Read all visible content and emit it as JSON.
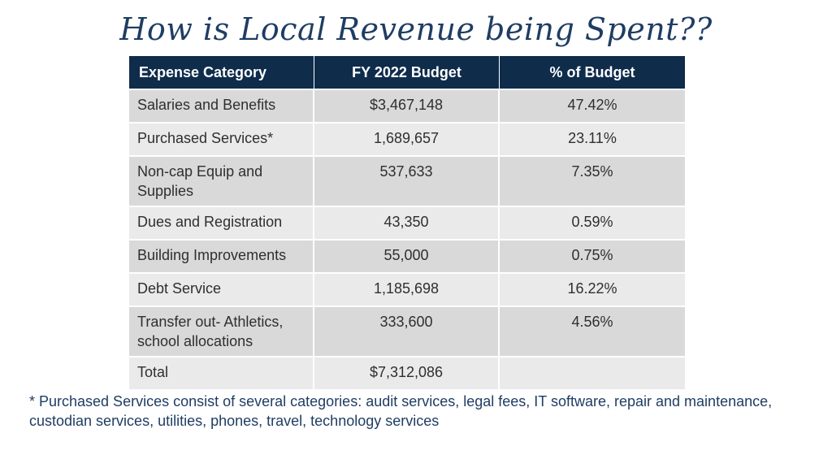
{
  "title": "How is Local Revenue being Spent??",
  "table": {
    "headers": [
      "Expense Category",
      "FY 2022 Budget",
      "% of Budget"
    ],
    "rows": [
      {
        "category": "Salaries and Benefits",
        "budget": "$3,467,148",
        "percent": "47.42%"
      },
      {
        "category": "Purchased Services*",
        "budget": "1,689,657",
        "percent": "23.11%"
      },
      {
        "category": "Non-cap Equip and Supplies",
        "budget": "537,633",
        "percent": "7.35%"
      },
      {
        "category": "Dues and Registration",
        "budget": "43,350",
        "percent": "0.59%"
      },
      {
        "category": "Building Improvements",
        "budget": "55,000",
        "percent": "0.75%"
      },
      {
        "category": "Debt Service",
        "budget": "1,185,698",
        "percent": "16.22%"
      },
      {
        "category": "Transfer out- Athletics, school allocations",
        "budget": "333,600",
        "percent": "4.56%"
      },
      {
        "category": "Total",
        "budget": "$7,312,086",
        "percent": ""
      }
    ]
  },
  "footnote": "* Purchased Services consist of several categories: audit services, legal fees, IT software, repair and maintenance, custodian services, utilities, phones, travel, technology services",
  "colors": {
    "header_bg": "#0f2c4b",
    "title": "#1f3d63",
    "row_dark": "#d9d9d9",
    "row_light": "#eaeaea"
  }
}
